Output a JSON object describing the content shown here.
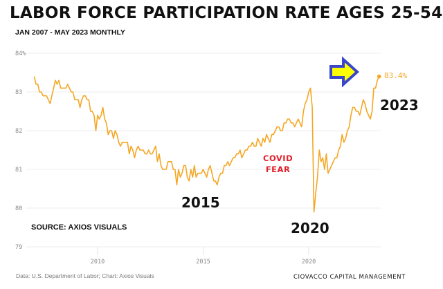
{
  "title": "LABOR FORCE PARTICIPATION RATE AGES 25-54",
  "subtitle": "JAN 2007 - MAY 2023 MONTHLY",
  "annotations": {
    "y2015": "2015",
    "y2020": "2020",
    "y2023": "2023",
    "covid_line1": "COVID",
    "covid_line2": "FEAR",
    "source": "SOURCE: AXIOS VISUALS",
    "last_value": "83.4%"
  },
  "footer": {
    "credit": "Data: U.S. Department of Labor; Chart: Axios Visuals",
    "brand": "CIOVACCO CAPITAL MANAGEMENT"
  },
  "colors": {
    "line": "#f5a623",
    "arrow_fill": "#ffff00",
    "arrow_stroke": "#3b47c9",
    "covid": "#e0202a"
  },
  "chart_data": {
    "type": "line",
    "title": "LABOR FORCE PARTICIPATION RATE AGES 25-54",
    "xlabel": "",
    "ylabel": "",
    "start": "2007-01",
    "frequency": "monthly",
    "x_ticks": [
      "2010",
      "2015",
      "2020"
    ],
    "y_ticks": [
      "84%",
      "83",
      "82",
      "81",
      "80",
      "79"
    ],
    "ylim": [
      79,
      84
    ],
    "grid": "horizontal",
    "series": [
      {
        "values": [
          83.4,
          83.2,
          83.2,
          83.0,
          83.0,
          82.9,
          82.9,
          82.9,
          82.8,
          82.7,
          82.9,
          83.1,
          83.3,
          83.2,
          83.3,
          83.1,
          83.1,
          83.1,
          83.1,
          83.2,
          83.1,
          83.0,
          83.0,
          82.8,
          82.8,
          82.8,
          82.6,
          82.8,
          82.9,
          82.9,
          82.8,
          82.8,
          82.5,
          82.5,
          82.4,
          82.0,
          82.4,
          82.3,
          82.4,
          82.6,
          82.3,
          82.2,
          81.9,
          82.0,
          82.0,
          81.8,
          82.0,
          81.9,
          81.7,
          81.6,
          81.7,
          81.7,
          81.7,
          81.7,
          81.4,
          81.6,
          81.5,
          81.3,
          81.5,
          81.6,
          81.5,
          81.5,
          81.5,
          81.4,
          81.4,
          81.5,
          81.4,
          81.4,
          81.5,
          81.6,
          81.2,
          81.4,
          81.1,
          81.0,
          81.0,
          81.0,
          81.2,
          81.2,
          81.2,
          81.0,
          81.0,
          80.6,
          81.0,
          80.8,
          80.9,
          81.1,
          81.1,
          80.8,
          80.7,
          81.0,
          80.8,
          81.1,
          80.8,
          80.9,
          80.9,
          80.9,
          81.0,
          80.9,
          80.8,
          81.0,
          81.1,
          80.9,
          80.7,
          80.7,
          80.6,
          80.8,
          80.9,
          80.9,
          81.1,
          81.1,
          81.2,
          81.1,
          81.2,
          81.3,
          81.3,
          81.4,
          81.4,
          81.5,
          81.3,
          81.4,
          81.5,
          81.5,
          81.6,
          81.6,
          81.7,
          81.6,
          81.6,
          81.8,
          81.7,
          81.6,
          81.8,
          81.7,
          81.9,
          81.8,
          81.7,
          81.9,
          81.9,
          82.0,
          82.1,
          82.1,
          82.0,
          82.0,
          82.2,
          82.2,
          82.3,
          82.3,
          82.2,
          82.2,
          82.1,
          82.2,
          82.3,
          82.2,
          82.1,
          82.5,
          82.7,
          82.8,
          83.0,
          83.1,
          82.6,
          79.9,
          80.4,
          80.8,
          81.5,
          81.2,
          81.3,
          81.0,
          81.4,
          80.9,
          81.0,
          81.1,
          81.2,
          81.3,
          81.3,
          81.5,
          81.6,
          81.9,
          81.7,
          81.8,
          82.0,
          82.1,
          82.4,
          82.6,
          82.6,
          82.5,
          82.5,
          82.4,
          82.6,
          82.8,
          82.7,
          82.5,
          82.4,
          82.3,
          82.5,
          83.1,
          83.1,
          83.3,
          83.4
        ]
      }
    ]
  }
}
